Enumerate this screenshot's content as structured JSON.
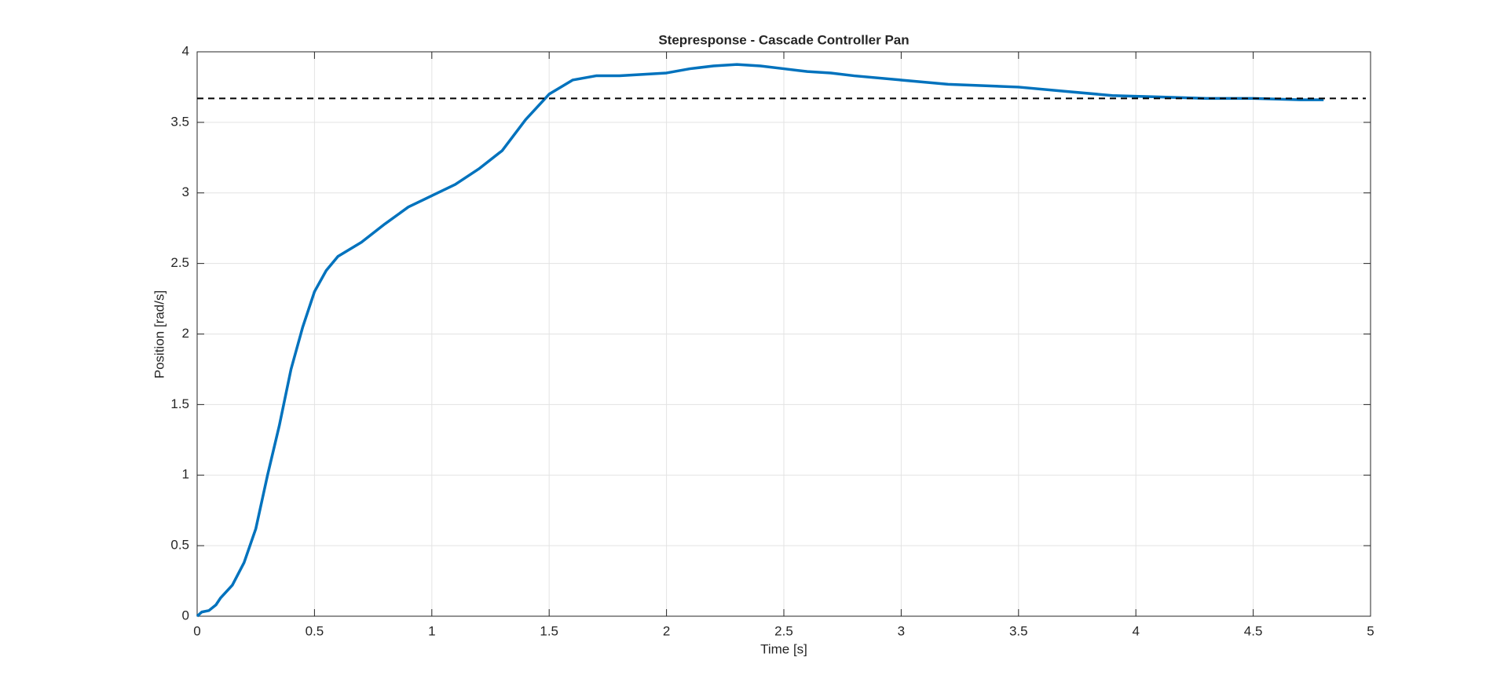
{
  "chart_data": {
    "type": "line",
    "title": "Stepresponse - Cascade Controller Pan",
    "x_label": "Time [s]",
    "y_label": "Position [rad/s]",
    "xlim": [
      0,
      5
    ],
    "ylim": [
      0,
      4
    ],
    "xticks": [
      0,
      0.5,
      1,
      1.5,
      2,
      2.5,
      3,
      3.5,
      4,
      4.5,
      5
    ],
    "yticks": [
      0,
      0.5,
      1,
      1.5,
      2,
      2.5,
      3,
      3.5,
      4
    ],
    "grid": true,
    "series": [
      {
        "color": "#0072bd",
        "dash": "solid",
        "x": [
          0,
          0.02,
          0.05,
          0.08,
          0.1,
          0.15,
          0.2,
          0.25,
          0.3,
          0.35,
          0.4,
          0.45,
          0.5,
          0.55,
          0.6,
          0.7,
          0.8,
          0.9,
          1.0,
          1.1,
          1.2,
          1.3,
          1.4,
          1.5,
          1.6,
          1.7,
          1.8,
          1.9,
          2.0,
          2.1,
          2.2,
          2.3,
          2.4,
          2.5,
          2.6,
          2.7,
          2.8,
          3.0,
          3.2,
          3.5,
          3.7,
          3.9,
          4.1,
          4.3,
          4.5,
          4.7,
          4.8
        ],
        "values": [
          0,
          0.03,
          0.04,
          0.08,
          0.13,
          0.22,
          0.38,
          0.62,
          1.0,
          1.35,
          1.75,
          2.05,
          2.3,
          2.45,
          2.55,
          2.65,
          2.78,
          2.9,
          2.98,
          3.06,
          3.17,
          3.3,
          3.52,
          3.7,
          3.8,
          3.83,
          3.83,
          3.84,
          3.85,
          3.88,
          3.9,
          3.91,
          3.9,
          3.88,
          3.86,
          3.85,
          3.83,
          3.8,
          3.77,
          3.75,
          3.72,
          3.69,
          3.68,
          3.67,
          3.67,
          3.66,
          3.66
        ]
      },
      {
        "color": "#000000",
        "dash": "dashed",
        "x": [
          0,
          4.98
        ],
        "values": [
          3.67,
          3.67
        ]
      }
    ]
  }
}
